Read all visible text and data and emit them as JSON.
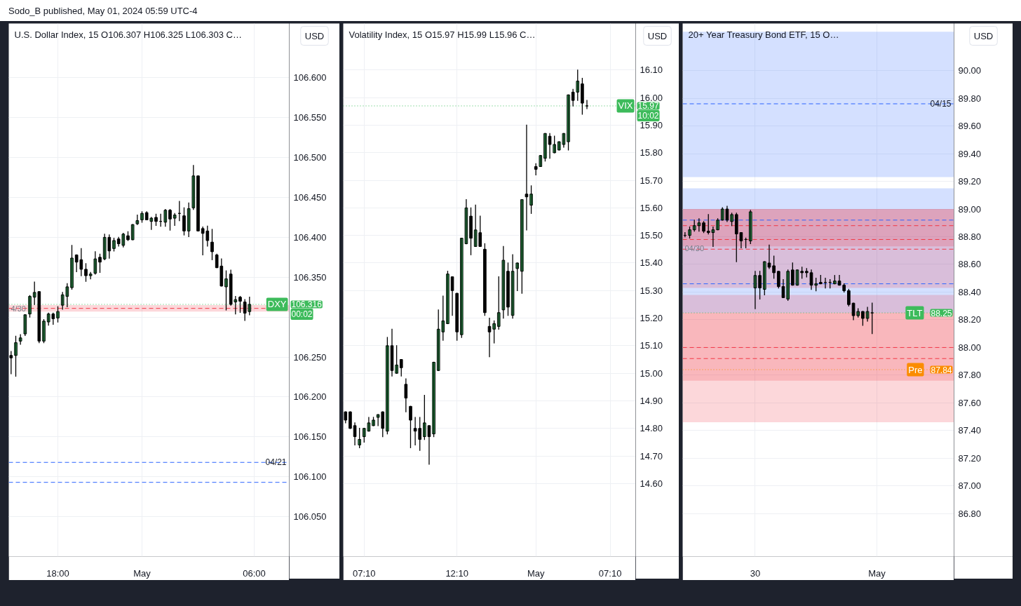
{
  "chart_data": [
    {
      "type": "candlestick",
      "title": "U.S. Dollar Index, 15  O106.307  H106.325  L106.303  C…",
      "ylabel": "USD",
      "categories": [
        null,
        null,
        null,
        null,
        null,
        null,
        null,
        null,
        null,
        null,
        "18:00",
        null,
        null,
        null,
        null,
        null,
        null,
        null,
        null,
        null,
        null,
        null,
        null,
        null,
        null,
        null,
        null,
        null,
        "May",
        null,
        null,
        null,
        null,
        null,
        null,
        null,
        null,
        null,
        null,
        null,
        null,
        null,
        null,
        null,
        null,
        null,
        null,
        null,
        null,
        null,
        null,
        null,
        "06:00",
        null,
        null,
        null,
        null,
        null,
        null,
        null
      ],
      "ohlc": [
        [
          106.252,
          106.257,
          106.229,
          106.249
        ],
        [
          106.252,
          106.276,
          106.226,
          106.268
        ],
        [
          106.27,
          106.278,
          106.266,
          106.274
        ],
        [
          106.279,
          106.303,
          106.277,
          106.303
        ],
        [
          106.304,
          106.327,
          106.3,
          106.326
        ],
        [
          106.325,
          106.344,
          106.316,
          106.331
        ],
        [
          106.332,
          106.332,
          106.268,
          106.27
        ],
        [
          106.27,
          106.297,
          106.268,
          106.295
        ],
        [
          106.294,
          106.305,
          106.29,
          106.304
        ],
        [
          106.304,
          106.305,
          106.291,
          106.298
        ],
        [
          106.299,
          106.313,
          106.294,
          106.307
        ],
        [
          106.315,
          106.331,
          106.31,
          106.328
        ],
        [
          106.326,
          106.342,
          106.313,
          106.338
        ],
        [
          106.337,
          106.39,
          106.335,
          106.374
        ],
        [
          106.378,
          106.378,
          106.357,
          106.369
        ],
        [
          106.372,
          106.386,
          106.352,
          106.36
        ],
        [
          106.36,
          106.367,
          106.345,
          106.352
        ],
        [
          106.352,
          106.356,
          106.348,
          106.354
        ],
        [
          106.355,
          106.382,
          106.354,
          106.373
        ],
        [
          106.375,
          106.379,
          106.356,
          106.369
        ],
        [
          106.373,
          106.404,
          106.372,
          106.4
        ],
        [
          106.4,
          106.403,
          106.374,
          106.383
        ],
        [
          106.386,
          106.399,
          106.383,
          106.396
        ],
        [
          106.398,
          106.4,
          106.389,
          106.392
        ],
        [
          106.39,
          106.405,
          106.388,
          106.404
        ],
        [
          106.402,
          106.407,
          106.396,
          106.397
        ],
        [
          106.397,
          106.416,
          106.397,
          106.416
        ],
        [
          106.417,
          106.428,
          106.416,
          106.421
        ],
        [
          106.422,
          106.432,
          106.419,
          106.43
        ],
        [
          106.431,
          106.432,
          106.422,
          106.422
        ],
        [
          106.42,
          106.425,
          106.41,
          106.424
        ],
        [
          106.425,
          106.429,
          106.415,
          106.42
        ],
        [
          106.42,
          106.429,
          106.414,
          106.42
        ],
        [
          106.419,
          106.435,
          106.414,
          106.434
        ],
        [
          106.434,
          106.435,
          106.409,
          106.423
        ],
        [
          106.424,
          106.43,
          106.415,
          106.428
        ],
        [
          106.43,
          106.445,
          106.421,
          106.43
        ],
        [
          106.427,
          106.437,
          106.403,
          106.408
        ],
        [
          106.408,
          106.443,
          106.401,
          106.436
        ],
        [
          106.437,
          106.49,
          106.435,
          106.477
        ],
        [
          106.477,
          106.477,
          106.408,
          106.408
        ],
        [
          106.411,
          106.413,
          106.378,
          106.405
        ],
        [
          106.408,
          106.414,
          106.389,
          106.396
        ],
        [
          106.394,
          106.41,
          106.372,
          106.382
        ],
        [
          106.378,
          106.379,
          106.362,
          106.362
        ],
        [
          106.364,
          106.373,
          106.339,
          106.339
        ],
        [
          106.338,
          106.358,
          106.309,
          106.348
        ],
        [
          106.354,
          106.359,
          106.315,
          106.316
        ],
        [
          106.319,
          106.326,
          106.304,
          106.322
        ],
        [
          106.325,
          106.326,
          106.306,
          106.32
        ],
        [
          106.319,
          106.322,
          106.296,
          106.305
        ],
        [
          106.307,
          106.325,
          106.303,
          106.316
        ],
        null,
        null,
        null,
        null,
        null,
        null,
        null,
        null
      ],
      "colors": [
        "#000000",
        "#41c96a",
        "#41c96a",
        "#41c96a",
        "#41c96a",
        "#41c96a",
        "#000000",
        "#41c96a",
        "#41c96a",
        "#000000",
        "#41c96a",
        "#41c96a",
        "#41c96a",
        "#41c96a",
        "#000000",
        "#000000",
        "#000000",
        "#41c96a",
        "#41c96a",
        "#000000",
        "#41c96a",
        "#000000",
        "#41c96a",
        "#000000",
        "#41c96a",
        "#000000",
        "#41c96a",
        "#41c96a",
        "#41c96a",
        "#000000",
        "#41c96a",
        "#000000",
        "#000000",
        "#41c96a",
        "#000000",
        "#41c96a",
        "#000000",
        "#000000",
        "#41c96a",
        "#41c96a",
        "#000000",
        "#000000",
        "#000000",
        "#000000",
        "#000000",
        "#000000",
        "#41c96a",
        "#000000",
        "#41c96a",
        "#000000",
        "#000000",
        "#41c96a",
        null,
        null,
        null,
        null,
        null,
        null,
        null,
        null
      ],
      "ylim": [
        106.0,
        106.668
      ],
      "yticks": [
        {
          "value": 106.05,
          "label": "106.050"
        },
        {
          "value": 106.1,
          "label": "106.100"
        },
        {
          "value": 106.15,
          "label": "106.150"
        },
        {
          "value": 106.2,
          "label": "106.200"
        },
        {
          "value": 106.25,
          "label": "106.250"
        },
        {
          "value": 106.3,
          "label": null
        },
        {
          "value": 106.35,
          "label": "106.350"
        },
        {
          "value": 106.4,
          "label": "106.400"
        },
        {
          "value": 106.45,
          "label": "106.450"
        },
        {
          "value": 106.5,
          "label": "106.500"
        },
        {
          "value": 106.55,
          "label": "106.550"
        },
        {
          "value": 106.6,
          "label": "106.600"
        }
      ],
      "grid": true,
      "bands": [
        {
          "axis": "y",
          "from": 106.307,
          "to": 106.315,
          "label": "4/30",
          "color": "#f23645"
        }
      ],
      "ref_lines": [
        {
          "axis": "y",
          "value": 106.311,
          "color": "#f23645",
          "line_style": "dashed"
        },
        {
          "axis": "y",
          "value": 106.118,
          "color": "#2962ff",
          "line_style": "dashed"
        },
        {
          "axis": "y",
          "value": 106.093,
          "color": "#2962ff",
          "line_style": "dashed"
        },
        {
          "axis": "y",
          "value": 106.316,
          "label": "DXY",
          "color": "#3dbb5b",
          "line_style": "dotted"
        }
      ],
      "annotations": [
        "Sodo_B published, May 01, 2024 05:59 UTC-4",
        "106.316",
        "00:02",
        {
          "text": "04/21",
          "y": 106.118
        }
      ]
    },
    {
      "type": "candlestick",
      "title": "Volatility Index, 15  O15.97  H15.99  L15.96  C…",
      "ylabel": "USD",
      "categories": [
        null,
        null,
        null,
        null,
        "07:10",
        null,
        null,
        null,
        null,
        null,
        null,
        null,
        null,
        null,
        null,
        null,
        null,
        null,
        null,
        null,
        null,
        null,
        null,
        null,
        "12:10",
        null,
        null,
        null,
        null,
        null,
        null,
        null,
        null,
        null,
        null,
        null,
        null,
        null,
        null,
        null,
        null,
        "May",
        null,
        null,
        null,
        null,
        null,
        null,
        null,
        null,
        null,
        null,
        null,
        null,
        null,
        null,
        null,
        "07:10",
        null,
        null,
        null,
        null,
        null
      ],
      "ohlc": [
        [
          14.86,
          14.86,
          14.82,
          14.83
        ],
        [
          14.86,
          14.86,
          14.8,
          14.8
        ],
        [
          14.81,
          14.82,
          14.74,
          14.77
        ],
        [
          14.74,
          14.8,
          14.73,
          14.76
        ],
        [
          14.77,
          14.8,
          14.75,
          14.8
        ],
        [
          14.79,
          14.84,
          14.79,
          14.82
        ],
        [
          14.81,
          14.84,
          14.81,
          14.83
        ],
        [
          14.84,
          14.85,
          14.81,
          14.85
        ],
        [
          14.86,
          14.86,
          14.77,
          14.8
        ],
        [
          14.79,
          15.13,
          14.78,
          15.1
        ],
        [
          15.1,
          15.16,
          14.99,
          15.01
        ],
        [
          15.0,
          15.1,
          15.0,
          15.03
        ],
        [
          15.05,
          15.05,
          14.99,
          15.02
        ],
        [
          14.96,
          14.98,
          14.86,
          14.91
        ],
        [
          14.88,
          14.88,
          14.73,
          14.83
        ],
        [
          14.8,
          14.84,
          14.74,
          14.79
        ],
        [
          14.8,
          14.84,
          14.72,
          14.76
        ],
        [
          14.77,
          14.92,
          14.76,
          14.82
        ],
        [
          14.81,
          14.81,
          14.67,
          14.77
        ],
        [
          14.78,
          15.04,
          14.77,
          15.04
        ],
        [
          15.01,
          15.23,
          15.01,
          15.16
        ],
        [
          15.15,
          15.28,
          15.12,
          15.19
        ],
        [
          15.18,
          15.37,
          15.18,
          15.36
        ],
        [
          15.35,
          15.35,
          15.21,
          15.3
        ],
        [
          15.29,
          15.29,
          15.12,
          15.15
        ],
        [
          15.14,
          15.49,
          15.13,
          15.49
        ],
        [
          15.47,
          15.63,
          15.47,
          15.6
        ],
        [
          15.57,
          15.6,
          15.43,
          15.49
        ],
        [
          15.46,
          15.61,
          15.46,
          15.52
        ],
        [
          15.51,
          15.57,
          15.46,
          15.46
        ],
        [
          15.45,
          15.47,
          15.21,
          15.22
        ],
        [
          15.17,
          15.2,
          15.06,
          15.15
        ],
        [
          15.16,
          15.19,
          15.11,
          15.18
        ],
        [
          15.17,
          15.35,
          15.16,
          15.22
        ],
        [
          15.23,
          15.46,
          15.2,
          15.41
        ],
        [
          15.37,
          15.4,
          15.21,
          15.24
        ],
        [
          15.21,
          15.43,
          15.2,
          15.37
        ],
        [
          15.38,
          15.4,
          15.3,
          15.4
        ],
        [
          15.37,
          15.63,
          15.29,
          15.63
        ],
        [
          15.65,
          15.9,
          15.52,
          15.64
        ],
        [
          15.61,
          15.68,
          15.58,
          15.65
        ],
        [
          15.75,
          15.76,
          15.72,
          15.74
        ],
        [
          15.75,
          15.79,
          15.75,
          15.79
        ],
        [
          15.78,
          15.87,
          15.77,
          15.87
        ],
        [
          15.86,
          15.87,
          15.78,
          15.83
        ],
        [
          15.8,
          15.86,
          15.8,
          15.83
        ],
        [
          15.81,
          15.84,
          15.81,
          15.84
        ],
        [
          15.83,
          15.87,
          15.82,
          15.87
        ],
        [
          15.84,
          16.01,
          15.81,
          16.01
        ],
        [
          16.02,
          16.03,
          15.97,
          15.99
        ],
        [
          16.02,
          16.1,
          15.99,
          16.06
        ],
        [
          16.05,
          16.07,
          15.94,
          15.98
        ],
        [
          15.97,
          15.99,
          15.96,
          15.97
        ],
        null,
        null,
        null,
        null,
        null,
        null,
        null,
        null,
        null,
        null
      ],
      "colors": [
        "#000000",
        "#000000",
        "#000000",
        "#41c96a",
        "#41c96a",
        "#41c96a",
        "#41c96a",
        "#41c96a",
        "#000000",
        "#41c96a",
        "#000000",
        "#41c96a",
        "#000000",
        "#000000",
        "#000000",
        "#000000",
        "#000000",
        "#41c96a",
        "#000000",
        "#41c96a",
        "#41c96a",
        "#41c96a",
        "#41c96a",
        "#000000",
        "#000000",
        "#41c96a",
        "#41c96a",
        "#000000",
        "#41c96a",
        "#000000",
        "#000000",
        "#000000",
        "#41c96a",
        "#41c96a",
        "#41c96a",
        "#000000",
        "#41c96a",
        "#41c96a",
        "#41c96a",
        "#000000",
        "#41c96a",
        "#000000",
        "#41c96a",
        "#41c96a",
        "#000000",
        "#41c96a",
        "#41c96a",
        "#41c96a",
        "#41c96a",
        "#000000",
        "#41c96a",
        "#000000",
        "#000000",
        null,
        null,
        null,
        null,
        null,
        null,
        null,
        null,
        null,
        null
      ],
      "ylim": [
        14.335,
        16.269
      ],
      "yticks": [
        {
          "value": 14.6,
          "label": "14.60"
        },
        {
          "value": 14.7,
          "label": "14.70"
        },
        {
          "value": 14.8,
          "label": "14.80"
        },
        {
          "value": 14.9,
          "label": "14.90"
        },
        {
          "value": 15.0,
          "label": "15.00"
        },
        {
          "value": 15.1,
          "label": "15.10"
        },
        {
          "value": 15.2,
          "label": "15.20"
        },
        {
          "value": 15.3,
          "label": "15.30"
        },
        {
          "value": 15.4,
          "label": "15.40"
        },
        {
          "value": 15.5,
          "label": "15.50"
        },
        {
          "value": 15.6,
          "label": "15.60"
        },
        {
          "value": 15.7,
          "label": "15.70"
        },
        {
          "value": 15.8,
          "label": "15.80"
        },
        {
          "value": 15.9,
          "label": "15.90"
        },
        {
          "value": 16.0,
          "label": "16.00"
        },
        {
          "value": 16.1,
          "label": "16.10"
        }
      ],
      "grid": true,
      "ref_lines": [
        {
          "axis": "y",
          "value": 15.97,
          "label": "VIX",
          "color": "#3dbb5b",
          "line_style": "dotted"
        }
      ],
      "annotations": [
        {
          "text": "15.97",
          "y": 15.97
        },
        "10:02"
      ]
    },
    {
      "type": "candlestick",
      "title": "20+ Year Treasury Bond ETF, 15  O…",
      "ylabel": "USD",
      "categories": [
        null,
        null,
        null,
        null,
        null,
        null,
        null,
        null,
        null,
        null,
        null,
        null,
        null,
        null,
        null,
        "30",
        null,
        null,
        null,
        null,
        null,
        null,
        null,
        null,
        null,
        null,
        null,
        null,
        null,
        null,
        null,
        null,
        null,
        null,
        null,
        null,
        null,
        null,
        null,
        null,
        null,
        "May",
        null,
        null,
        null,
        null,
        null,
        null,
        null,
        null,
        null,
        null,
        null,
        null,
        null,
        null,
        null,
        null
      ],
      "ohlc": [
        [
          88.81,
          88.83,
          88.8,
          88.81
        ],
        [
          88.81,
          88.87,
          88.79,
          88.85
        ],
        [
          88.85,
          88.92,
          88.84,
          88.88
        ],
        [
          88.88,
          88.93,
          88.84,
          88.9
        ],
        [
          88.9,
          88.91,
          88.83,
          88.84
        ],
        [
          88.84,
          88.96,
          88.82,
          88.83
        ],
        [
          88.83,
          88.87,
          88.73,
          88.85
        ],
        [
          88.85,
          88.93,
          88.85,
          88.92
        ],
        [
          88.92,
          89.01,
          88.92,
          89.0
        ],
        [
          89.0,
          89.02,
          88.91,
          88.92
        ],
        [
          88.91,
          88.97,
          88.88,
          88.96
        ],
        [
          88.96,
          88.97,
          88.62,
          88.82
        ],
        [
          88.83,
          88.83,
          88.72,
          88.77
        ],
        [
          88.78,
          88.79,
          88.72,
          88.78
        ],
        [
          88.77,
          88.99,
          88.75,
          88.98
        ],
        [
          88.43,
          88.55,
          88.28,
          88.52
        ],
        [
          88.52,
          88.55,
          88.35,
          88.43
        ],
        [
          88.42,
          88.62,
          88.38,
          88.62
        ],
        [
          88.61,
          88.74,
          88.57,
          88.58
        ],
        [
          88.59,
          88.66,
          88.5,
          88.54
        ],
        [
          88.55,
          88.55,
          88.43,
          88.44
        ],
        [
          88.44,
          88.49,
          88.36,
          88.36
        ],
        [
          88.35,
          88.56,
          88.34,
          88.55
        ],
        [
          88.56,
          88.61,
          88.45,
          88.45
        ],
        [
          88.45,
          88.56,
          88.45,
          88.56
        ],
        [
          88.55,
          88.58,
          88.5,
          88.54
        ],
        [
          88.55,
          88.57,
          88.51,
          88.54
        ],
        [
          88.54,
          88.56,
          88.42,
          88.45
        ],
        [
          88.45,
          88.5,
          88.41,
          88.46
        ],
        [
          88.47,
          88.52,
          88.46,
          88.46
        ],
        [
          88.47,
          88.5,
          88.43,
          88.47
        ],
        [
          88.47,
          88.49,
          88.43,
          88.47
        ],
        [
          88.46,
          88.52,
          88.46,
          88.48
        ],
        [
          88.48,
          88.52,
          88.45,
          88.45
        ],
        [
          88.45,
          88.46,
          88.4,
          88.41
        ],
        [
          88.41,
          88.42,
          88.3,
          88.31
        ],
        [
          88.32,
          88.32,
          88.2,
          88.23
        ],
        [
          88.23,
          88.28,
          88.22,
          88.26
        ],
        [
          88.26,
          88.26,
          88.16,
          88.21
        ],
        [
          88.21,
          88.29,
          88.19,
          88.26
        ],
        [
          88.25,
          88.32,
          88.1,
          88.25
        ],
        null,
        null,
        null,
        null,
        null,
        null,
        null,
        null,
        null,
        null,
        null,
        null,
        null,
        null,
        null,
        null,
        null
      ],
      "colors": [
        "#000000",
        "#41c96a",
        "#41c96a",
        "#41c96a",
        "#000000",
        "#000000",
        "#41c96a",
        "#41c96a",
        "#41c96a",
        "#000000",
        "#41c96a",
        "#000000",
        "#000000",
        "#000000",
        "#41c96a",
        "#41c96a",
        "#000000",
        "#41c96a",
        "#000000",
        "#000000",
        "#000000",
        "#000000",
        "#41c96a",
        "#000000",
        "#41c96a",
        "#000000",
        "#000000",
        "#000000",
        "#41c96a",
        "#000000",
        "#000000",
        "#000000",
        "#41c96a",
        "#000000",
        "#000000",
        "#000000",
        "#000000",
        "#41c96a",
        "#000000",
        "#41c96a",
        "#000000",
        null,
        null,
        null,
        null,
        null,
        null,
        null,
        null,
        null,
        null,
        null,
        null,
        null,
        null,
        null,
        null,
        null
      ],
      "ylim": [
        86.49,
        90.34
      ],
      "yticks": [
        {
          "value": 86.8,
          "label": "86.80"
        },
        {
          "value": 87.0,
          "label": "87.00"
        },
        {
          "value": 87.2,
          "label": "87.20"
        },
        {
          "value": 87.4,
          "label": "87.40"
        },
        {
          "value": 87.6,
          "label": "87.60"
        },
        {
          "value": 87.8,
          "label": "87.80"
        },
        {
          "value": 88.0,
          "label": "88.00"
        },
        {
          "value": 88.2,
          "label": "88.20"
        },
        {
          "value": 88.4,
          "label": "88.40"
        },
        {
          "value": 88.6,
          "label": "88.60"
        },
        {
          "value": 88.8,
          "label": "88.80"
        },
        {
          "value": 89.0,
          "label": "89.00"
        },
        {
          "value": 89.2,
          "label": "89.20"
        },
        {
          "value": 89.4,
          "label": "89.40"
        },
        {
          "value": 89.6,
          "label": "89.60"
        },
        {
          "value": 89.8,
          "label": "89.80"
        },
        {
          "value": 90.0,
          "label": "90.00"
        }
      ],
      "grid": true,
      "bands": [
        {
          "axis": "y",
          "from": 89.23,
          "to": 90.28,
          "color": "#2962ff"
        },
        {
          "axis": "y",
          "from": 88.25,
          "to": 89.15,
          "color": "#2962ff"
        },
        {
          "axis": "y",
          "from": 88.73,
          "to": 89.0,
          "color": "#f23645"
        },
        {
          "axis": "y",
          "from": 88.43,
          "to": 89.0,
          "label": "04/30",
          "color": "#f23645"
        },
        {
          "axis": "y",
          "from": 88.25,
          "to": 88.38,
          "color": "#f23645"
        },
        {
          "axis": "y",
          "from": 87.46,
          "to": 88.25,
          "color": "#f23645"
        },
        {
          "axis": "y",
          "from": 87.76,
          "to": 88.25,
          "color": "#f23645"
        }
      ],
      "ref_lines": [
        {
          "axis": "y",
          "value": 89.76,
          "color": "#2962ff",
          "line_style": "dashed"
        },
        {
          "axis": "y",
          "value": 88.92,
          "color": "#2962ff",
          "line_style": "dashed"
        },
        {
          "axis": "y",
          "value": 88.88,
          "color": "#f23645",
          "line_style": "dashed"
        },
        {
          "axis": "y",
          "value": 88.78,
          "color": "#f23645",
          "line_style": "dashed"
        },
        {
          "axis": "y",
          "value": 88.71,
          "color": "#f23645",
          "line_style": "dashed"
        },
        {
          "axis": "y",
          "value": 88.46,
          "color": "#2962ff",
          "line_style": "dashed"
        },
        {
          "axis": "y",
          "value": 88.0,
          "color": "#f23645",
          "line_style": "dashed"
        },
        {
          "axis": "y",
          "value": 87.92,
          "color": "#f23645",
          "line_style": "dashed"
        },
        {
          "axis": "y",
          "value": 88.25,
          "label": "TLT",
          "color": "#3dbb5b",
          "line_style": "dotted"
        },
        {
          "axis": "y",
          "value": 87.84,
          "label": "Pre",
          "color": "#fb8c00",
          "line_style": "dotted"
        }
      ],
      "annotations": [
        {
          "text": "04/15",
          "y": 89.76
        },
        {
          "text": "88.25",
          "y": 88.25
        },
        {
          "text": "87.84",
          "y": 87.84
        }
      ]
    }
  ]
}
